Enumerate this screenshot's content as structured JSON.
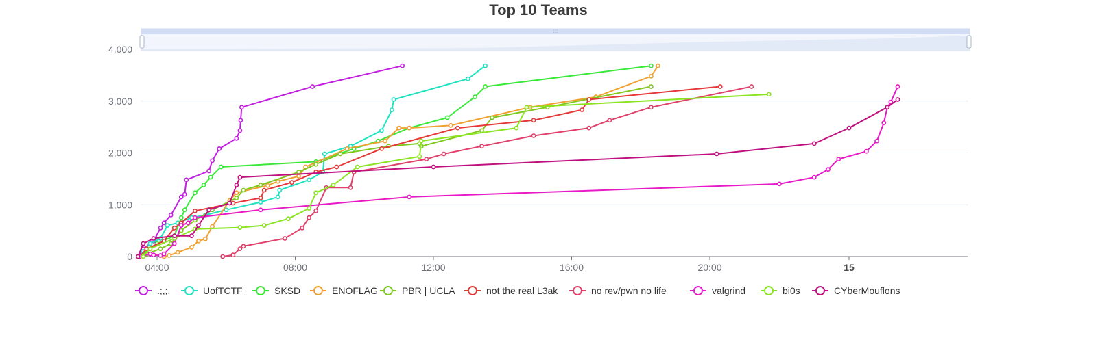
{
  "chart_data": {
    "type": "line",
    "title": "Top 10 Teams",
    "x_axis": {
      "type": "time",
      "range_hours": [
        3.45,
        23.8
      ],
      "ticks": [
        {
          "label": "04:00",
          "value": 4,
          "bold": false
        },
        {
          "label": "08:00",
          "value": 8,
          "bold": false
        },
        {
          "label": "12:00",
          "value": 12,
          "bold": false
        },
        {
          "label": "16:00",
          "value": 16,
          "bold": false
        },
        {
          "label": "20:00",
          "value": 20,
          "bold": false
        },
        {
          "label": "15",
          "value": 24,
          "bold": true
        }
      ]
    },
    "y_axis": {
      "ylim": [
        0,
        4000
      ],
      "ticks": [
        {
          "label": "0",
          "value": 0
        },
        {
          "label": "1,000",
          "value": 1000
        },
        {
          "label": "2,000",
          "value": 2000
        },
        {
          "label": "3,000",
          "value": 3000
        },
        {
          "label": "4,000",
          "value": 4000
        }
      ]
    },
    "grid": true,
    "legend_position": "bottom",
    "datazoom_slider": true,
    "series": [
      {
        "name": ".;,;.",
        "color": "#c21fe0",
        "points": [
          [
            3.45,
            0
          ],
          [
            3.6,
            150
          ],
          [
            3.9,
            300
          ],
          [
            4.1,
            550
          ],
          [
            4.2,
            650
          ],
          [
            4.4,
            800
          ],
          [
            4.7,
            1150
          ],
          [
            4.8,
            1200
          ],
          [
            4.85,
            1480
          ],
          [
            5.5,
            1650
          ],
          [
            5.6,
            1850
          ],
          [
            5.8,
            2080
          ],
          [
            6.3,
            2280
          ],
          [
            6.4,
            2430
          ],
          [
            6.42,
            2630
          ],
          [
            6.45,
            2880
          ],
          [
            8.5,
            3280
          ],
          [
            11.1,
            3680
          ]
        ]
      },
      {
        "name": "UofTCTF",
        "color": "#1fe3c0",
        "points": [
          [
            3.5,
            0
          ],
          [
            3.6,
            100
          ],
          [
            3.8,
            250
          ],
          [
            4.1,
            350
          ],
          [
            4.3,
            600
          ],
          [
            4.6,
            650
          ],
          [
            5.0,
            750
          ],
          [
            5.4,
            800
          ],
          [
            6.0,
            900
          ],
          [
            7.0,
            1050
          ],
          [
            7.5,
            1150
          ],
          [
            7.55,
            1280
          ],
          [
            8.4,
            1480
          ],
          [
            8.8,
            1630
          ],
          [
            8.85,
            1980
          ],
          [
            9.6,
            2130
          ],
          [
            10.5,
            2430
          ],
          [
            10.8,
            2830
          ],
          [
            10.85,
            3030
          ],
          [
            13.0,
            3430
          ],
          [
            13.5,
            3680
          ]
        ]
      },
      {
        "name": "SKSD",
        "color": "#3ae83a",
        "points": [
          [
            3.5,
            0
          ],
          [
            3.8,
            150
          ],
          [
            4.0,
            250
          ],
          [
            4.5,
            400
          ],
          [
            4.7,
            750
          ],
          [
            4.8,
            900
          ],
          [
            5.1,
            1230
          ],
          [
            5.35,
            1380
          ],
          [
            5.55,
            1530
          ],
          [
            5.85,
            1730
          ],
          [
            8.6,
            1830
          ],
          [
            9.7,
            2080
          ],
          [
            10.4,
            2230
          ],
          [
            11.3,
            2480
          ],
          [
            12.4,
            2680
          ],
          [
            13.2,
            3080
          ],
          [
            13.5,
            3280
          ],
          [
            18.3,
            3680
          ]
        ]
      },
      {
        "name": "ENOFLAG",
        "color": "#f0a030",
        "points": [
          [
            4.2,
            0
          ],
          [
            4.35,
            20
          ],
          [
            4.6,
            80
          ],
          [
            5.0,
            180
          ],
          [
            5.2,
            300
          ],
          [
            5.4,
            340
          ],
          [
            5.6,
            580
          ],
          [
            6.1,
            1080
          ],
          [
            6.3,
            1230
          ],
          [
            7.2,
            1370
          ],
          [
            7.5,
            1450
          ],
          [
            8.1,
            1550
          ],
          [
            8.3,
            1730
          ],
          [
            9.5,
            2080
          ],
          [
            10.6,
            2230
          ],
          [
            11.0,
            2480
          ],
          [
            11.3,
            2480
          ],
          [
            12.5,
            2530
          ],
          [
            14.8,
            2880
          ],
          [
            16.7,
            3080
          ],
          [
            18.3,
            3480
          ],
          [
            18.5,
            3680
          ]
        ]
      },
      {
        "name": "PBR | UCLA",
        "color": "#80c820",
        "points": [
          [
            3.45,
            0
          ],
          [
            3.7,
            50
          ],
          [
            4.1,
            150
          ],
          [
            4.4,
            250
          ],
          [
            4.7,
            500
          ],
          [
            5.1,
            700
          ],
          [
            5.6,
            900
          ],
          [
            6.3,
            1130
          ],
          [
            6.5,
            1280
          ],
          [
            7.0,
            1380
          ],
          [
            8.1,
            1630
          ],
          [
            8.6,
            1780
          ],
          [
            9.3,
            1980
          ],
          [
            10.7,
            2130
          ],
          [
            11.6,
            2180
          ],
          [
            11.65,
            2130
          ],
          [
            13.4,
            2430
          ],
          [
            13.7,
            2680
          ],
          [
            15.3,
            2880
          ],
          [
            18.3,
            3280
          ]
        ]
      },
      {
        "name": "not the real L3ak",
        "color": "#e53838",
        "points": [
          [
            3.5,
            0
          ],
          [
            3.7,
            150
          ],
          [
            4.2,
            300
          ],
          [
            4.5,
            550
          ],
          [
            4.7,
            650
          ],
          [
            5.1,
            880
          ],
          [
            6.2,
            1030
          ],
          [
            7.0,
            1130
          ],
          [
            7.1,
            1280
          ],
          [
            7.9,
            1430
          ],
          [
            8.6,
            1630
          ],
          [
            9.2,
            1730
          ],
          [
            10.5,
            2080
          ],
          [
            12.7,
            2480
          ],
          [
            14.9,
            2630
          ],
          [
            16.3,
            2830
          ],
          [
            16.5,
            3030
          ],
          [
            20.3,
            3280
          ]
        ]
      },
      {
        "name": "no rev/pwn no life",
        "color": "#e0406a",
        "points": [
          [
            5.9,
            0
          ],
          [
            6.2,
            30
          ],
          [
            6.4,
            150
          ],
          [
            6.5,
            200
          ],
          [
            7.7,
            350
          ],
          [
            8.2,
            550
          ],
          [
            8.4,
            750
          ],
          [
            8.6,
            880
          ],
          [
            8.9,
            1330
          ],
          [
            9.6,
            1330
          ],
          [
            9.7,
            1630
          ],
          [
            11.8,
            1880
          ],
          [
            12.3,
            1980
          ],
          [
            13.4,
            2130
          ],
          [
            14.9,
            2330
          ],
          [
            16.5,
            2480
          ],
          [
            17.1,
            2630
          ],
          [
            18.3,
            2880
          ],
          [
            21.2,
            3280
          ]
        ]
      },
      {
        "name": "valgrind",
        "color": "#e81ac8",
        "points": [
          [
            3.5,
            0
          ],
          [
            3.8,
            50
          ],
          [
            3.9,
            30
          ],
          [
            4.1,
            20
          ],
          [
            4.2,
            50
          ],
          [
            4.5,
            250
          ],
          [
            4.7,
            600
          ],
          [
            4.9,
            650
          ],
          [
            5.1,
            750
          ],
          [
            7.0,
            900
          ],
          [
            11.3,
            1150
          ],
          [
            22.0,
            1400
          ],
          [
            23.0,
            1530
          ],
          [
            23.4,
            1680
          ],
          [
            23.7,
            1880
          ],
          [
            24.5,
            2030
          ],
          [
            24.8,
            2230
          ],
          [
            25.0,
            2580
          ],
          [
            25.1,
            2880
          ],
          [
            25.2,
            2980
          ],
          [
            25.4,
            3280
          ]
        ]
      },
      {
        "name": "bi0s",
        "color": "#8ae420",
        "points": [
          [
            3.6,
            0
          ],
          [
            3.8,
            150
          ],
          [
            4.5,
            350
          ],
          [
            5.1,
            530
          ],
          [
            6.4,
            560
          ],
          [
            7.1,
            600
          ],
          [
            7.8,
            730
          ],
          [
            8.4,
            930
          ],
          [
            8.6,
            1230
          ],
          [
            9.1,
            1380
          ],
          [
            9.8,
            1730
          ],
          [
            11.6,
            1930
          ],
          [
            11.65,
            2230
          ],
          [
            14.4,
            2480
          ],
          [
            14.7,
            2880
          ],
          [
            21.7,
            3130
          ]
        ]
      },
      {
        "name": "CYberMouflons",
        "color": "#c01080",
        "points": [
          [
            3.45,
            0
          ],
          [
            3.6,
            250
          ],
          [
            3.9,
            350
          ],
          [
            4.5,
            400
          ],
          [
            5.0,
            400
          ],
          [
            5.2,
            600
          ],
          [
            5.5,
            900
          ],
          [
            6.1,
            1030
          ],
          [
            6.3,
            1380
          ],
          [
            6.4,
            1530
          ],
          [
            12.0,
            1730
          ],
          [
            20.2,
            1980
          ],
          [
            23.0,
            2180
          ],
          [
            24.0,
            2480
          ],
          [
            25.1,
            2880
          ],
          [
            25.4,
            3030
          ]
        ]
      }
    ]
  }
}
